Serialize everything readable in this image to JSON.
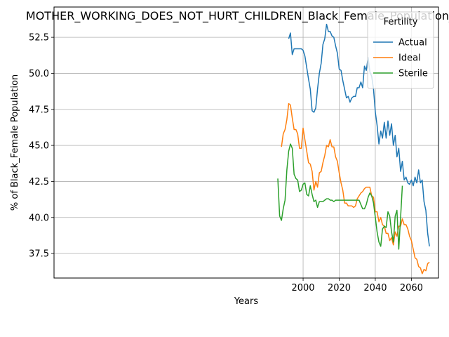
{
  "chart_data": {
    "type": "line",
    "title": "MOTHER_WORKING_DOES_NOT_HURT_CHILDREN_Black_Female_Population_sc",
    "xlabel": "Years",
    "ylabel": "% of Black_Female Population",
    "xlim": [
      1862,
      2075
    ],
    "ylim": [
      35.8,
      54.6
    ],
    "x_ticks": [
      2000,
      2020,
      2040,
      2060
    ],
    "y_ticks": [
      37.5,
      40.0,
      42.5,
      45.0,
      47.5,
      50.0,
      52.5
    ],
    "y_tick_labels": [
      "37.5",
      "40.0",
      "42.5",
      "45.0",
      "47.5",
      "50.0",
      "52.5"
    ],
    "grid": true,
    "legend": {
      "title": "Fertility",
      "position": "top-right"
    },
    "series": [
      {
        "name": "Actual",
        "color": "#1f77b4",
        "points": [
          [
            1992,
            52.4
          ],
          [
            1993,
            52.8
          ],
          [
            1994,
            51.3
          ],
          [
            1995,
            51.7
          ],
          [
            1996,
            51.7
          ],
          [
            1997,
            51.7
          ],
          [
            1998,
            51.7
          ],
          [
            1999,
            51.7
          ],
          [
            2000,
            51.6
          ],
          [
            2001,
            51.2
          ],
          [
            2002,
            50.4
          ],
          [
            2003,
            49.6
          ],
          [
            2004,
            48.9
          ],
          [
            2005,
            47.4
          ],
          [
            2006,
            47.3
          ],
          [
            2007,
            47.6
          ],
          [
            2008,
            48.9
          ],
          [
            2009,
            50.0
          ],
          [
            2010,
            50.7
          ],
          [
            2011,
            52.0
          ],
          [
            2012,
            52.4
          ],
          [
            2013,
            53.4
          ],
          [
            2014,
            52.9
          ],
          [
            2015,
            52.9
          ],
          [
            2016,
            52.6
          ],
          [
            2017,
            52.5
          ],
          [
            2018,
            51.9
          ],
          [
            2019,
            51.4
          ],
          [
            2020,
            50.3
          ],
          [
            2021,
            50.2
          ],
          [
            2022,
            49.5
          ],
          [
            2023,
            48.9
          ],
          [
            2024,
            48.3
          ],
          [
            2025,
            48.4
          ],
          [
            2026,
            48.0
          ],
          [
            2027,
            48.3
          ],
          [
            2028,
            48.4
          ],
          [
            2029,
            48.4
          ],
          [
            2030,
            49.0
          ],
          [
            2031,
            49.0
          ],
          [
            2032,
            49.4
          ],
          [
            2033,
            49.0
          ],
          [
            2034,
            50.5
          ],
          [
            2035,
            50.2
          ],
          [
            2036,
            51.1
          ],
          [
            2037,
            50.1
          ],
          [
            2038,
            49.8
          ],
          [
            2039,
            48.9
          ],
          [
            2040,
            47.3
          ],
          [
            2041,
            46.4
          ],
          [
            2042,
            45.1
          ],
          [
            2043,
            46.0
          ],
          [
            2044,
            45.5
          ],
          [
            2045,
            46.6
          ],
          [
            2046,
            45.5
          ],
          [
            2047,
            46.7
          ],
          [
            2048,
            45.7
          ],
          [
            2049,
            46.5
          ],
          [
            2050,
            45.0
          ],
          [
            2051,
            45.7
          ],
          [
            2052,
            44.2
          ],
          [
            2053,
            44.8
          ],
          [
            2054,
            43.2
          ],
          [
            2055,
            43.9
          ],
          [
            2056,
            42.6
          ],
          [
            2057,
            42.8
          ],
          [
            2058,
            42.4
          ],
          [
            2059,
            42.3
          ],
          [
            2060,
            42.6
          ],
          [
            2061,
            42.2
          ],
          [
            2062,
            42.8
          ],
          [
            2063,
            42.4
          ],
          [
            2064,
            43.3
          ],
          [
            2065,
            42.4
          ],
          [
            2066,
            42.6
          ],
          [
            2067,
            41.1
          ],
          [
            2068,
            40.5
          ],
          [
            2069,
            38.9
          ],
          [
            2070,
            38.0
          ]
        ]
      },
      {
        "name": "Ideal",
        "color": "#ff7f0e",
        "points": [
          [
            1988,
            44.9
          ],
          [
            1989,
            45.8
          ],
          [
            1990,
            46.1
          ],
          [
            1991,
            46.8
          ],
          [
            1992,
            47.9
          ],
          [
            1993,
            47.8
          ],
          [
            1994,
            46.9
          ],
          [
            1995,
            46.1
          ],
          [
            1996,
            46.1
          ],
          [
            1997,
            45.8
          ],
          [
            1998,
            44.8
          ],
          [
            1999,
            44.8
          ],
          [
            2000,
            46.2
          ],
          [
            2001,
            45.4
          ],
          [
            2002,
            44.6
          ],
          [
            2003,
            43.8
          ],
          [
            2004,
            43.7
          ],
          [
            2005,
            43.2
          ],
          [
            2006,
            41.9
          ],
          [
            2007,
            42.5
          ],
          [
            2008,
            42.1
          ],
          [
            2009,
            43.1
          ],
          [
            2010,
            43.2
          ],
          [
            2011,
            43.8
          ],
          [
            2012,
            44.3
          ],
          [
            2013,
            45.0
          ],
          [
            2014,
            44.9
          ],
          [
            2015,
            45.4
          ],
          [
            2016,
            44.9
          ],
          [
            2017,
            44.9
          ],
          [
            2018,
            44.2
          ],
          [
            2019,
            43.9
          ],
          [
            2020,
            43.1
          ],
          [
            2021,
            42.4
          ],
          [
            2022,
            41.9
          ],
          [
            2023,
            41.0
          ],
          [
            2024,
            41.0
          ],
          [
            2025,
            40.8
          ],
          [
            2026,
            40.8
          ],
          [
            2027,
            40.8
          ],
          [
            2028,
            40.7
          ],
          [
            2029,
            40.8
          ],
          [
            2030,
            41.3
          ],
          [
            2031,
            41.5
          ],
          [
            2032,
            41.7
          ],
          [
            2033,
            41.8
          ],
          [
            2034,
            42.0
          ],
          [
            2035,
            42.1
          ],
          [
            2036,
            42.1
          ],
          [
            2037,
            42.1
          ],
          [
            2038,
            41.5
          ],
          [
            2039,
            41.4
          ],
          [
            2040,
            40.4
          ],
          [
            2041,
            40.4
          ],
          [
            2042,
            39.7
          ],
          [
            2043,
            40.0
          ],
          [
            2044,
            39.5
          ],
          [
            2045,
            39.4
          ],
          [
            2046,
            38.9
          ],
          [
            2047,
            38.9
          ],
          [
            2048,
            38.4
          ],
          [
            2049,
            38.6
          ],
          [
            2050,
            38.1
          ],
          [
            2051,
            39.0
          ],
          [
            2052,
            38.7
          ],
          [
            2053,
            39.4
          ],
          [
            2054,
            39.4
          ],
          [
            2055,
            39.9
          ],
          [
            2056,
            39.5
          ],
          [
            2057,
            39.5
          ],
          [
            2058,
            39.2
          ],
          [
            2059,
            38.7
          ],
          [
            2060,
            38.4
          ],
          [
            2061,
            37.8
          ],
          [
            2062,
            37.2
          ],
          [
            2063,
            37.1
          ],
          [
            2064,
            36.6
          ],
          [
            2065,
            36.5
          ],
          [
            2066,
            36.1
          ],
          [
            2067,
            36.4
          ],
          [
            2068,
            36.3
          ],
          [
            2069,
            36.8
          ],
          [
            2070,
            36.9
          ]
        ]
      },
      {
        "name": "Sterile",
        "color": "#2ca02c",
        "points": [
          [
            1986,
            42.7
          ],
          [
            1987,
            40.1
          ],
          [
            1988,
            39.8
          ],
          [
            1989,
            40.6
          ],
          [
            1990,
            41.2
          ],
          [
            1991,
            43.3
          ],
          [
            1992,
            44.6
          ],
          [
            1993,
            45.1
          ],
          [
            1994,
            44.8
          ],
          [
            1995,
            43.0
          ],
          [
            1996,
            42.7
          ],
          [
            1997,
            42.6
          ],
          [
            1998,
            41.8
          ],
          [
            1999,
            41.9
          ],
          [
            2000,
            42.3
          ],
          [
            2001,
            42.4
          ],
          [
            2002,
            41.6
          ],
          [
            2003,
            41.5
          ],
          [
            2004,
            42.2
          ],
          [
            2005,
            41.6
          ],
          [
            2006,
            41.1
          ],
          [
            2007,
            41.2
          ],
          [
            2008,
            40.7
          ],
          [
            2009,
            41.1
          ],
          [
            2010,
            41.1
          ],
          [
            2011,
            41.1
          ],
          [
            2012,
            41.2
          ],
          [
            2013,
            41.3
          ],
          [
            2014,
            41.3
          ],
          [
            2015,
            41.2
          ],
          [
            2016,
            41.2
          ],
          [
            2017,
            41.1
          ],
          [
            2018,
            41.2
          ],
          [
            2019,
            41.2
          ],
          [
            2020,
            41.2
          ],
          [
            2021,
            41.2
          ],
          [
            2022,
            41.2
          ],
          [
            2023,
            41.2
          ],
          [
            2024,
            41.2
          ],
          [
            2025,
            41.2
          ],
          [
            2026,
            41.2
          ],
          [
            2027,
            41.2
          ],
          [
            2028,
            41.2
          ],
          [
            2029,
            41.2
          ],
          [
            2030,
            41.2
          ],
          [
            2031,
            41.2
          ],
          [
            2032,
            40.9
          ],
          [
            2033,
            40.6
          ],
          [
            2034,
            40.6
          ],
          [
            2035,
            40.9
          ],
          [
            2036,
            41.4
          ],
          [
            2037,
            41.7
          ],
          [
            2038,
            41.5
          ],
          [
            2039,
            41.0
          ],
          [
            2040,
            40.0
          ],
          [
            2041,
            39.0
          ],
          [
            2042,
            38.3
          ],
          [
            2043,
            38.0
          ],
          [
            2044,
            39.2
          ],
          [
            2045,
            39.4
          ],
          [
            2046,
            39.3
          ],
          [
            2047,
            40.4
          ],
          [
            2048,
            40.1
          ],
          [
            2049,
            39.0
          ],
          [
            2050,
            38.3
          ],
          [
            2051,
            40.1
          ],
          [
            2052,
            40.5
          ],
          [
            2053,
            37.8
          ],
          [
            2054,
            40.0
          ],
          [
            2055,
            42.2
          ]
        ]
      }
    ]
  }
}
